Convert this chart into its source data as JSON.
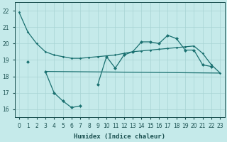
{
  "xlabel": "Humidex (Indice chaleur)",
  "background_color": "#c5eaea",
  "grid_color": "#a8d4d4",
  "line_color": "#1a7070",
  "x_values": [
    0,
    1,
    2,
    3,
    4,
    5,
    6,
    7,
    8,
    9,
    10,
    11,
    12,
    13,
    14,
    15,
    16,
    17,
    18,
    19,
    20,
    21,
    22,
    23
  ],
  "line1_y": [
    21.9,
    20.7,
    20.0,
    19.5,
    19.3,
    19.2,
    19.1,
    19.1,
    19.15,
    19.2,
    19.25,
    19.3,
    19.4,
    19.5,
    19.55,
    19.6,
    19.65,
    19.7,
    19.75,
    19.8,
    19.85,
    19.4,
    18.7,
    18.2
  ],
  "line2_y": [
    null,
    18.9,
    null,
    18.3,
    17.0,
    16.5,
    16.1,
    16.2,
    null,
    17.5,
    19.2,
    18.5,
    19.3,
    19.5,
    20.1,
    20.1,
    20.0,
    20.5,
    20.3,
    19.6,
    19.6,
    18.7,
    18.6,
    null
  ],
  "line3_y": [
    null,
    null,
    null,
    18.3,
    18.3,
    18.3,
    18.3,
    18.3,
    18.3,
    18.3,
    18.3,
    18.3,
    18.3,
    18.3,
    18.3,
    18.3,
    18.3,
    18.3,
    18.1,
    18.1,
    18.1,
    18.1,
    18.1,
    18.2
  ],
  "line3_endpoints_x": [
    3,
    23
  ],
  "line3_endpoints_y": [
    18.3,
    18.2
  ],
  "ylim": [
    15.5,
    22.5
  ],
  "xlim": [
    -0.5,
    23.5
  ],
  "yticks": [
    16,
    17,
    18,
    19,
    20,
    21,
    22
  ],
  "xticks": [
    0,
    1,
    2,
    3,
    4,
    5,
    6,
    7,
    8,
    9,
    10,
    11,
    12,
    13,
    14,
    15,
    16,
    17,
    18,
    19,
    20,
    21,
    22,
    23
  ],
  "xlabel_fontsize": 6.5,
  "tick_fontsize": 5.5
}
